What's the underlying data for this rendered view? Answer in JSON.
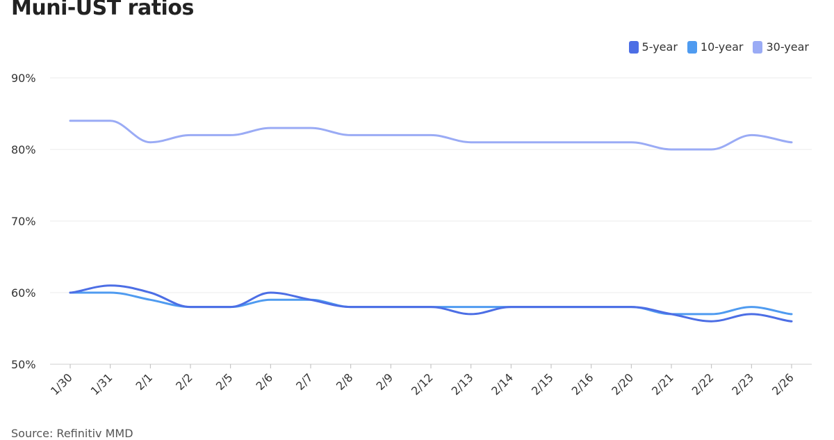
{
  "title": "Muni-UST ratios",
  "source": "Source: Refinitiv MMD",
  "chart_data": {
    "type": "line",
    "title": "Muni-UST ratios",
    "xlabel": "",
    "ylabel": "",
    "categories": [
      "1/30",
      "1/31",
      "2/1",
      "2/2",
      "2/5",
      "2/6",
      "2/7",
      "2/8",
      "2/9",
      "2/12",
      "2/13",
      "2/14",
      "2/15",
      "2/16",
      "2/20",
      "2/21",
      "2/22",
      "2/23",
      "2/26"
    ],
    "series": [
      {
        "name": "5-year",
        "color": "#4c6ee5",
        "values": [
          60,
          61,
          60,
          58,
          58,
          60,
          59,
          58,
          58,
          58,
          57,
          58,
          58,
          58,
          58,
          57,
          56,
          57,
          56
        ]
      },
      {
        "name": "10-year",
        "color": "#4f9bf0",
        "values": [
          60,
          60,
          59,
          58,
          58,
          59,
          59,
          58,
          58,
          58,
          58,
          58,
          58,
          58,
          58,
          57,
          57,
          58,
          57
        ]
      },
      {
        "name": "30-year",
        "color": "#9aabf5",
        "values": [
          84,
          84,
          81,
          82,
          82,
          83,
          83,
          82,
          82,
          82,
          81,
          81,
          81,
          81,
          81,
          80,
          80,
          82,
          81
        ]
      }
    ],
    "ylim": [
      50,
      90
    ],
    "yticks": [
      50,
      60,
      70,
      80,
      90
    ],
    "ytick_labels": [
      "50%",
      "60%",
      "70%",
      "80%",
      "90%"
    ],
    "grid": true,
    "legend": "top-right"
  }
}
